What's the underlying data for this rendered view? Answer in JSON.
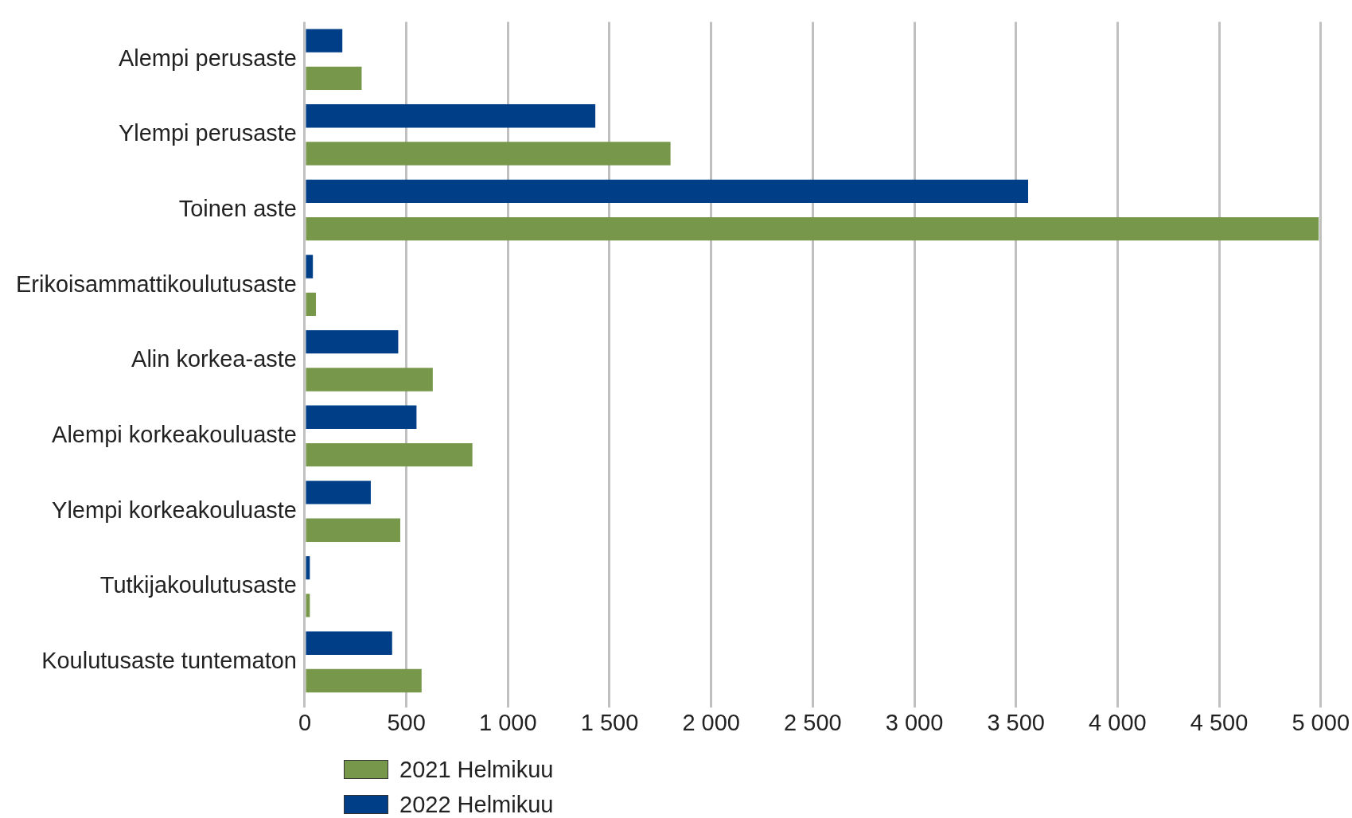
{
  "chart_data": {
    "type": "bar",
    "orientation": "horizontal",
    "categories": [
      "Alempi perusaste",
      "Ylempi perusaste",
      "Toinen aste",
      "Erikoisammattikoulutusaste",
      "Alin korkea-aste",
      "Alempi korkeakouluaste",
      "Ylempi korkeakouluaste",
      "Tutkijakoulutusaste",
      "Koulutusaste tuntematon"
    ],
    "series": [
      {
        "name": "2021 Helmikuu",
        "color": "#77974a",
        "values": [
          280,
          1800,
          4990,
          55,
          630,
          825,
          470,
          25,
          575
        ]
      },
      {
        "name": "2022 Helmikuu",
        "color": "#003f87",
        "values": [
          185,
          1430,
          3560,
          40,
          460,
          550,
          325,
          25,
          430
        ]
      }
    ],
    "xlim": [
      0,
      5000
    ],
    "xticks": [
      0,
      500,
      {
        "value": 1000,
        "label": "1 000"
      },
      {
        "value": 1500,
        "label": "1 500"
      },
      {
        "value": 2000,
        "label": "2 000"
      },
      {
        "value": 2500,
        "label": "2 500"
      },
      {
        "value": 3000,
        "label": "3 000"
      },
      {
        "value": 3500,
        "label": "3 500"
      },
      {
        "value": 4000,
        "label": "4 000"
      },
      {
        "value": 4500,
        "label": "4 500"
      },
      {
        "value": 5000,
        "label": "5 000"
      }
    ],
    "grid": "x",
    "legend": "bottom"
  }
}
